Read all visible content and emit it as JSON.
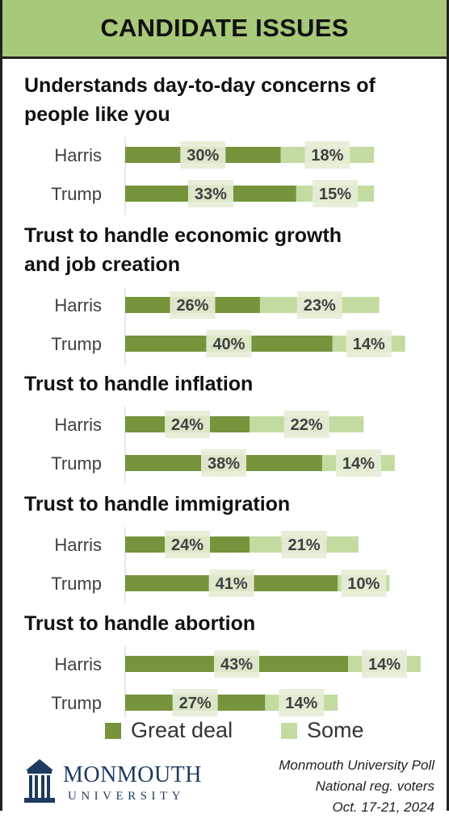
{
  "header": {
    "title": "CANDIDATE ISSUES"
  },
  "colors": {
    "great_deal": "#77933c",
    "some": "#c3dba0",
    "label_bg": "#e5eed6",
    "header_bg": "#a8c97a"
  },
  "chart_data": {
    "type": "bar",
    "stacked": true,
    "orientation": "horizontal",
    "legend": [
      {
        "name": "Great deal"
      },
      {
        "name": "Some"
      }
    ],
    "groups": [
      {
        "title_lines": [
          "Understands day-to-day concerns of",
          "people like you"
        ],
        "rows": [
          {
            "label": "Harris",
            "great_deal": 30,
            "some": 18,
            "great_deal_text": "30%",
            "some_text": "18%"
          },
          {
            "label": "Trump",
            "great_deal": 33,
            "some": 15,
            "great_deal_text": "33%",
            "some_text": "15%"
          }
        ]
      },
      {
        "title_lines": [
          "Trust to handle economic growth",
          "and job creation"
        ],
        "rows": [
          {
            "label": "Harris",
            "great_deal": 26,
            "some": 23,
            "great_deal_text": "26%",
            "some_text": "23%"
          },
          {
            "label": "Trump",
            "great_deal": 40,
            "some": 14,
            "great_deal_text": "40%",
            "some_text": "14%"
          }
        ]
      },
      {
        "title_lines": [
          "Trust to handle inflation"
        ],
        "rows": [
          {
            "label": "Harris",
            "great_deal": 24,
            "some": 22,
            "great_deal_text": "24%",
            "some_text": "22%"
          },
          {
            "label": "Trump",
            "great_deal": 38,
            "some": 14,
            "great_deal_text": "38%",
            "some_text": "14%"
          }
        ]
      },
      {
        "title_lines": [
          "Trust to handle immigration"
        ],
        "rows": [
          {
            "label": "Harris",
            "great_deal": 24,
            "some": 21,
            "great_deal_text": "24%",
            "some_text": "21%"
          },
          {
            "label": "Trump",
            "great_deal": 41,
            "some": 10,
            "great_deal_text": "41%",
            "some_text": "10%"
          }
        ]
      },
      {
        "title_lines": [
          "Trust to handle abortion"
        ],
        "rows": [
          {
            "label": "Harris",
            "great_deal": 43,
            "some": 14,
            "great_deal_text": "43%",
            "some_text": "14%"
          },
          {
            "label": "Trump",
            "great_deal": 27,
            "some": 14,
            "great_deal_text": "27%",
            "some_text": "14%"
          }
        ]
      }
    ]
  },
  "footer": {
    "logo_name": "MONMOUTH",
    "logo_sub": "UNIVERSITY",
    "source_lines": [
      "Monmouth University Poll",
      "National reg. voters",
      "Oct. 17-21, 2024"
    ]
  }
}
